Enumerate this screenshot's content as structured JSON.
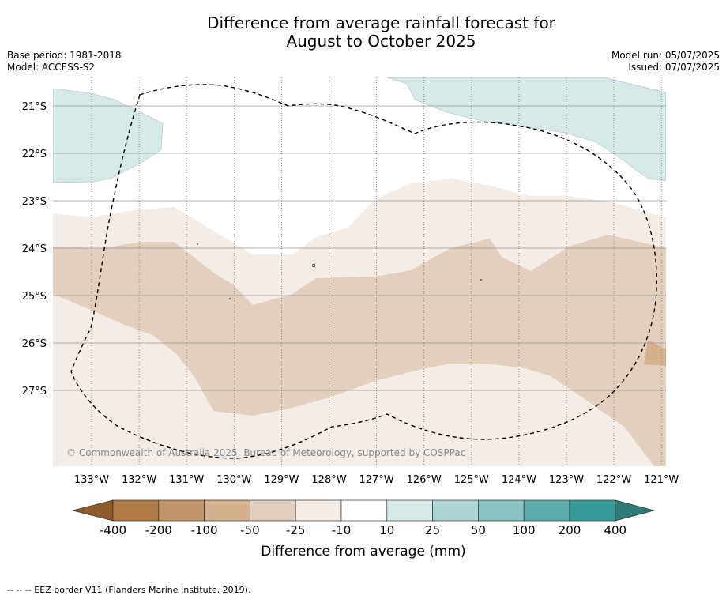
{
  "title": {
    "line1": "Difference from average rainfall forecast for",
    "line2": "August to October 2025"
  },
  "meta": {
    "base_period": "Base period: 1981-2018",
    "model": "Model: ACCESS-S2",
    "model_run": "Model run: 05/07/2025",
    "issued": "Issued: 07/07/2025"
  },
  "map": {
    "lat_labels": [
      "21°S",
      "22°S",
      "23°S",
      "24°S",
      "25°S",
      "26°S",
      "27°S"
    ],
    "lon_labels": [
      "133°W",
      "132°W",
      "131°W",
      "130°W",
      "129°W",
      "128°W",
      "127°W",
      "126°W",
      "125°W",
      "124°W",
      "123°W",
      "122°W",
      "121°W"
    ],
    "copyright": "© Commonwealth of Australia 2025, Bureau of Meteorology, supported by COSPPac"
  },
  "colorbar": {
    "title": "Difference from average (mm)",
    "tick_labels": [
      "-400",
      "-200",
      "-100",
      "-50",
      "-25",
      "-10",
      "10",
      "25",
      "50",
      "100",
      "200",
      "400"
    ],
    "colors": [
      "#8c5a2b",
      "#b07a45",
      "#c39669",
      "#d4b08c",
      "#e2cfbd",
      "#f4ece6",
      "#ffffff",
      "#d5e9e8",
      "#acd5d4",
      "#85c2c0",
      "#5caeac",
      "#369b98",
      "#2d7a78"
    ]
  },
  "footnote": "--  --  -- EEZ border V11 (Flanders Marine Institute, 2019)."
}
